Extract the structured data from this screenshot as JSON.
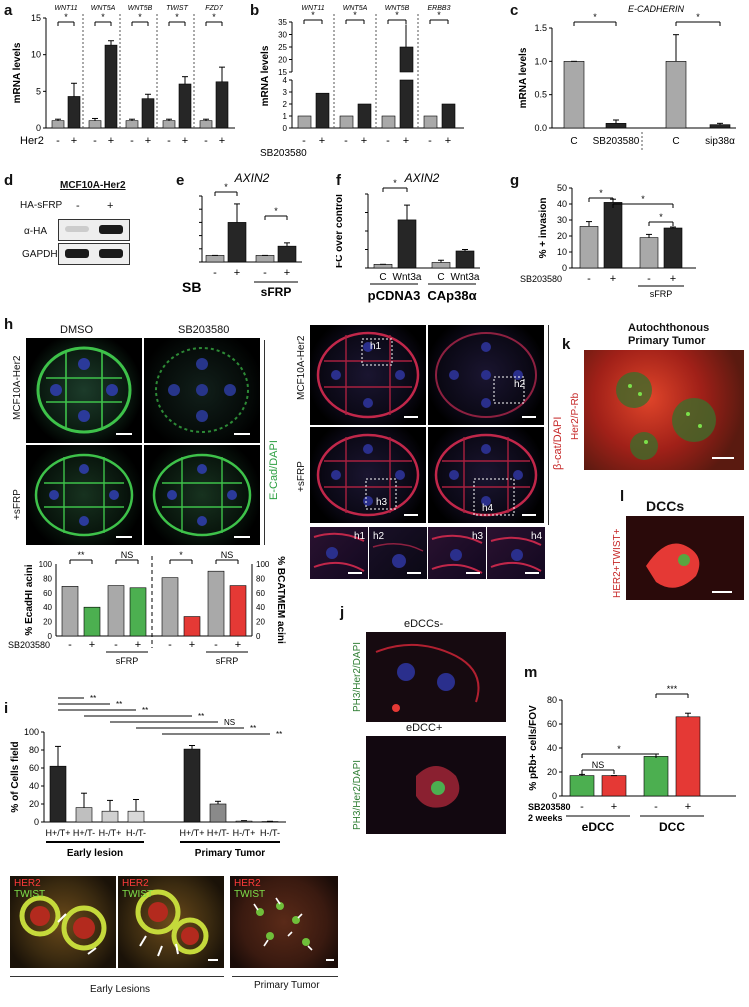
{
  "panels": {
    "a": {
      "label": "a",
      "genes": [
        "WNT11",
        "WNT5A",
        "WNT5B",
        "TWIST",
        "FZD7"
      ],
      "ylabel": "mRNA levels",
      "factor": "Her2",
      "signs": [
        "-",
        "+"
      ],
      "sig": "*",
      "chart_data": {
        "type": "bar",
        "categories": [
          "WNT11 -",
          "WNT11 +",
          "WNT5A -",
          "WNT5A +",
          "WNT5B -",
          "WNT5B +",
          "TWIST -",
          "TWIST +",
          "FZD7 -",
          "FZD7 +"
        ],
        "values": [
          1,
          4.3,
          1,
          11.3,
          1,
          4,
          1,
          6,
          1,
          6.3
        ],
        "ylim": [
          0,
          15
        ],
        "yticks": [
          "0",
          "5",
          "10",
          "15"
        ],
        "ylabel": "mRNA levels"
      }
    },
    "b": {
      "label": "b",
      "genes": [
        "WNT11",
        "WNT5A",
        "WNT5B",
        "ERBB3"
      ],
      "ylabel": "mRNA levels",
      "factor": "SB203580",
      "signs": [
        "-",
        "+"
      ],
      "sig": "*",
      "chart_data": {
        "type": "bar",
        "categories": [
          "WNT11 -",
          "WNT11 +",
          "WNT5A -",
          "WNT5A +",
          "WNT5B -",
          "WNT5B +",
          "ERBB3 -",
          "ERBB3 +"
        ],
        "values": [
          1,
          2.9,
          1,
          2,
          1,
          25,
          1,
          2
        ],
        "yticks": [
          "0",
          "1",
          "2",
          "3",
          "4",
          "15",
          "20",
          "25",
          "30",
          "35"
        ],
        "ylabel": "mRNA levels"
      }
    },
    "c": {
      "label": "c",
      "title": "E-CADHERIN",
      "ylabel": "mRNA levels",
      "sig": "*",
      "chart_data": {
        "type": "bar",
        "categories": [
          "C",
          "SB203580",
          "C",
          "sip38α"
        ],
        "values": [
          1,
          0.07,
          1,
          0.05
        ],
        "ylim": [
          0,
          1.5
        ],
        "yticks": [
          "0.0",
          "0.5",
          "1.0",
          "1.5"
        ],
        "ylabel": "mRNA levels"
      }
    },
    "d": {
      "label": "d",
      "title": "MCF10A-Her2",
      "row_labels": [
        "HA-sFRP",
        "α-HA",
        "GAPDH"
      ],
      "signs": [
        "-",
        "+"
      ]
    },
    "e": {
      "label": "e",
      "title": "AXIN2",
      "ylabel": "FC over control",
      "factor": "SB",
      "group": "sFRP",
      "signs": [
        "-",
        "+",
        "-",
        "+"
      ],
      "sig": "*",
      "chart_data": {
        "type": "bar",
        "categories": [
          "-",
          "+",
          "sFRP -",
          "sFRP +"
        ],
        "values": [
          1,
          6,
          1,
          2.4
        ],
        "ylim": [
          0,
          10
        ],
        "yticks": [
          "0",
          "2",
          "4",
          "6",
          "8",
          "10"
        ],
        "ylabel": "FC over control"
      }
    },
    "f": {
      "label": "f",
      "title": "AXIN2",
      "ylabel": "FC over control",
      "groups": [
        "pCDNA3",
        "CAp38α"
      ],
      "sig": "*",
      "chart_data": {
        "type": "bar",
        "categories": [
          "C",
          "Wnt3a",
          "C",
          "Wnt3a"
        ],
        "values": [
          1,
          13,
          1.5,
          4.6
        ],
        "ylim": [
          0,
          20
        ],
        "yticks": [
          "0",
          "5",
          "10",
          "15",
          "20"
        ],
        "ylabel": "FC over control"
      }
    },
    "g": {
      "label": "g",
      "ylabel": "% + invasion",
      "factor": "SB203580",
      "group": "sFRP",
      "signs": [
        "-",
        "+",
        "-",
        "+"
      ],
      "sig": "*",
      "chart_data": {
        "type": "bar",
        "categories": [
          "-",
          "+",
          "sFRP -",
          "sFRP +"
        ],
        "values": [
          26,
          41,
          19,
          25
        ],
        "ylim": [
          0,
          50
        ],
        "yticks": [
          "0",
          "10",
          "20",
          "30",
          "40",
          "50"
        ],
        "ylabel": "% + invasion"
      }
    },
    "h": {
      "label": "h",
      "cols": [
        "DMSO",
        "SB203580"
      ],
      "rows": [
        "MCF10A-Her2",
        "+sFRP"
      ],
      "stain1": "E-Cad/DAPI",
      "stain2": "β-cat/DAPI",
      "insets": [
        "h1",
        "h2",
        "h3",
        "h4"
      ],
      "ylabel_left": "% EcadHI acini",
      "ylabel_right": "% BCATMEM acini",
      "factor": "SB203580",
      "group": "sFRP",
      "sig_marks": [
        "**",
        "NS",
        "*",
        "NS"
      ],
      "chart_data": {
        "type": "bar",
        "series": [
          {
            "name": "Ecad",
            "values": [
              69,
              40,
              70,
              67
            ]
          },
          {
            "name": "BCAT",
            "values": [
              81,
              27,
              90,
              70
            ]
          }
        ],
        "categories": [
          "-",
          "+",
          "sFRP -",
          "sFRP +"
        ],
        "ylim": [
          0,
          100
        ],
        "yticks": [
          "0",
          "20",
          "40",
          "60",
          "80",
          "100"
        ],
        "ylabel": "% EcadHI acini"
      }
    },
    "i": {
      "label": "i",
      "ylabel": "% of Cells field",
      "groups": [
        "Early lesion",
        "Primary Tumor"
      ],
      "sig_marks": [
        "**",
        "**",
        "**",
        "**",
        "NS",
        "**",
        "**"
      ],
      "image_label1": "HER2",
      "image_label2": "TWIST",
      "image_groups": [
        "Early Lesions",
        "Primary Tumor"
      ],
      "chart_data": {
        "type": "bar",
        "categories": [
          "H+/T+",
          "H+/T-",
          "H-/T+",
          "H-/T-",
          "H+/T+",
          "H+/T-",
          "H-/T+",
          "H-/T-"
        ],
        "values": [
          62,
          16,
          12,
          12,
          81,
          20,
          1,
          0.5
        ],
        "ylim": [
          0,
          100
        ],
        "yticks": [
          "0",
          "20",
          "40",
          "60",
          "80",
          "100"
        ],
        "ylabel": "% of Cells field"
      }
    },
    "j": {
      "label": "j",
      "top": "eDCCs-",
      "bottom": "eDCC+",
      "stain": "PH3/Her2/DAPI"
    },
    "k": {
      "label": "k",
      "title_line1": "Autochthonous",
      "title_line2": "Primary Tumor",
      "stain": "Her2/P-Rb"
    },
    "l": {
      "label": "l",
      "title": "DCCs",
      "stain": "HER2+TWIST+"
    },
    "m": {
      "label": "m",
      "ylabel": "% pRb+ cells/FOV",
      "factor": "SB203580",
      "duration": "2 weeks",
      "groups": [
        "eDCC",
        "DCC"
      ],
      "signs": [
        "-",
        "+",
        "-",
        "+"
      ],
      "sig_marks": [
        "NS",
        "*",
        "***"
      ],
      "chart_data": {
        "type": "bar",
        "categories": [
          "eDCC -",
          "eDCC +",
          "DCC -",
          "DCC +"
        ],
        "values": [
          17,
          17,
          33,
          66
        ],
        "ylim": [
          0,
          80
        ],
        "yticks": [
          "0",
          "20",
          "40",
          "60",
          "80"
        ],
        "ylabel": "% pRb+ cells/FOV"
      }
    }
  },
  "colors": {
    "gray": "#a9a9a9",
    "dark": "#262626",
    "green": "#4caf50",
    "red": "#e53935"
  }
}
